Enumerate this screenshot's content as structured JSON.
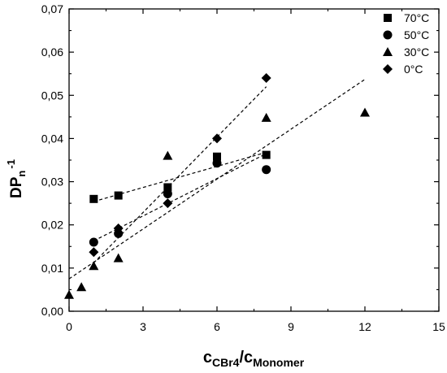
{
  "chart_data": {
    "type": "scatter",
    "xlabel": {
      "main": "c",
      "sub1": "CBr4",
      "sep": "/c",
      "sub2": "Monomer"
    },
    "ylabel": {
      "main": "DP",
      "sub": "n",
      "sup": "-1"
    },
    "xlim": [
      0,
      15
    ],
    "ylim": [
      0,
      0.07
    ],
    "x_ticks": [
      0,
      3,
      6,
      9,
      12,
      15
    ],
    "x_tick_labels": [
      "0",
      "3",
      "6",
      "9",
      "12",
      "15"
    ],
    "y_ticks": [
      0,
      0.01,
      0.02,
      0.03,
      0.04,
      0.05,
      0.06,
      0.07
    ],
    "y_tick_labels": [
      "0,00",
      "0,01",
      "0,02",
      "0,03",
      "0,04",
      "0,05",
      "0,06",
      "0,07"
    ],
    "legend_position": "top-right",
    "series": [
      {
        "name": "70°C",
        "marker": "square",
        "points": [
          [
            1,
            0.026
          ],
          [
            2,
            0.0268
          ],
          [
            4,
            0.0287
          ],
          [
            6,
            0.0358
          ],
          [
            8,
            0.0362
          ]
        ],
        "fit": [
          [
            1,
            0.0254
          ],
          [
            8,
            0.0368
          ]
        ]
      },
      {
        "name": "50°C",
        "marker": "circle",
        "points": [
          [
            1,
            0.016
          ],
          [
            2,
            0.018
          ],
          [
            4,
            0.0272
          ],
          [
            6,
            0.0343
          ],
          [
            8,
            0.0328
          ]
        ],
        "fit": [
          [
            1,
            0.0163
          ],
          [
            8,
            0.0365
          ]
        ]
      },
      {
        "name": "30°C",
        "marker": "triangle",
        "points": [
          [
            0,
            0.0038
          ],
          [
            0.5,
            0.0056
          ],
          [
            1,
            0.0105
          ],
          [
            2,
            0.0123
          ],
          [
            4,
            0.036
          ],
          [
            8,
            0.0448
          ],
          [
            12,
            0.046
          ]
        ],
        "fit": [
          [
            0,
            0.0075
          ],
          [
            12,
            0.0537
          ]
        ]
      },
      {
        "name": "0°C",
        "marker": "diamond",
        "points": [
          [
            1,
            0.0137
          ],
          [
            2,
            0.0192
          ],
          [
            4,
            0.025
          ],
          [
            6,
            0.04
          ],
          [
            8,
            0.054
          ]
        ],
        "fit": [
          [
            1,
            0.0112
          ],
          [
            8,
            0.052
          ]
        ]
      }
    ]
  }
}
